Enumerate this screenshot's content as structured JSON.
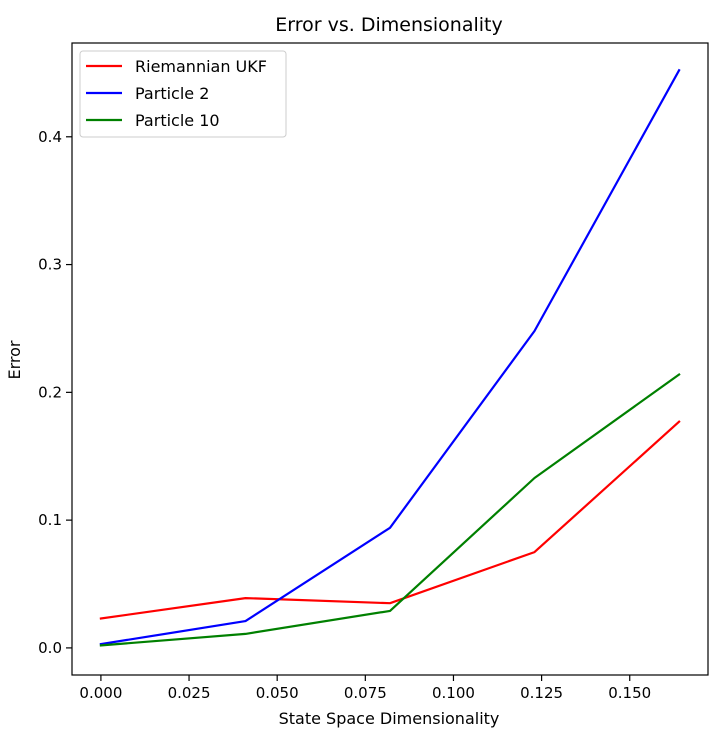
{
  "chart_data": {
    "type": "line",
    "title": "Error vs. Dimensionality",
    "xlabel": "State Space Dimensionality",
    "ylabel": "Error",
    "xlim": [
      -0.0082,
      0.1722
    ],
    "ylim": [
      -0.0212,
      0.4734
    ],
    "xticks": [
      0.0,
      0.025,
      0.05,
      0.075,
      0.1,
      0.125,
      0.15
    ],
    "xtick_labels": [
      "0.000",
      "0.025",
      "0.050",
      "0.075",
      "0.100",
      "0.125",
      "0.150"
    ],
    "yticks": [
      0.0,
      0.1,
      0.2,
      0.3,
      0.4
    ],
    "ytick_labels": [
      "0.0",
      "0.1",
      "0.2",
      "0.3",
      "0.4"
    ],
    "grid": false,
    "legend_position": "top-left",
    "x": [
      0.0,
      0.041,
      0.082,
      0.123,
      0.164
    ],
    "series": [
      {
        "name": "Riemannian UKF",
        "color": "#ff0000",
        "values": [
          0.023,
          0.039,
          0.035,
          0.075,
          0.177
        ]
      },
      {
        "name": "Particle 2",
        "color": "#0000ff",
        "values": [
          0.003,
          0.021,
          0.094,
          0.248,
          0.452
        ]
      },
      {
        "name": "Particle 10",
        "color": "#008000",
        "values": [
          0.002,
          0.011,
          0.029,
          0.133,
          0.214
        ]
      }
    ]
  }
}
